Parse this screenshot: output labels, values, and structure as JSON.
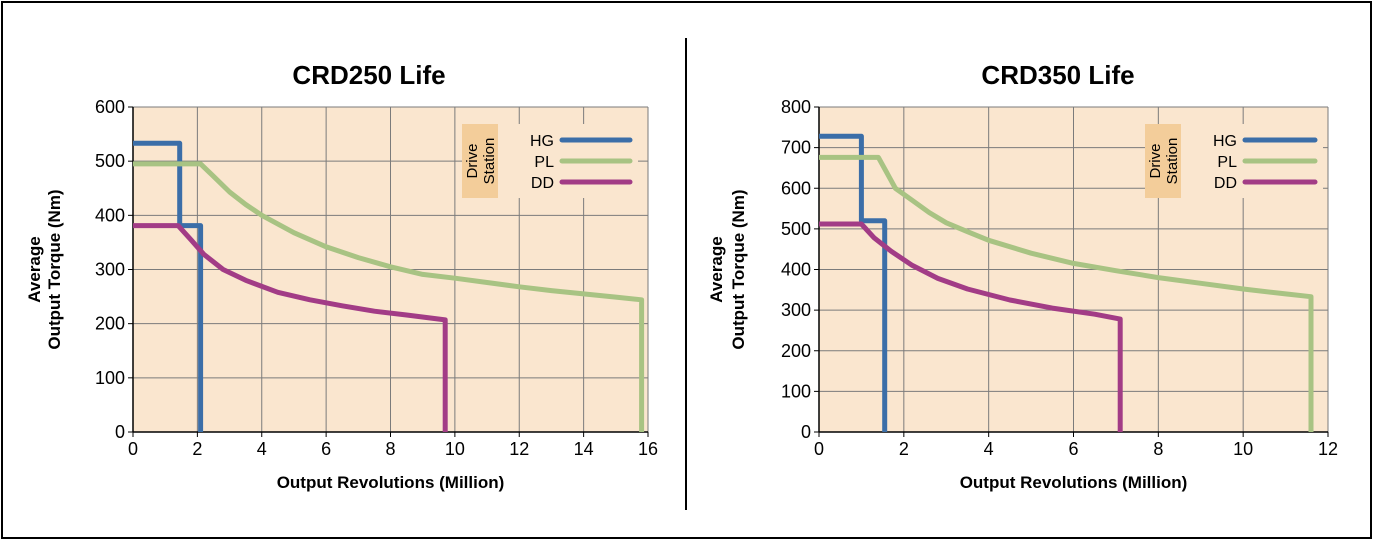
{
  "colors": {
    "plot_bg": "#fae6cf",
    "legend_label_bg": "#f3cd9a",
    "grid": "#7b7b7b",
    "HG": "#3b6ea8",
    "PL": "#a8c383",
    "DD": "#a23c86"
  },
  "chart_data": [
    {
      "type": "line",
      "title": "CRD250 Life",
      "xlabel": "Output Revolutions (Million)",
      "ylabel": [
        "Average",
        "Output Torque (Nm)"
      ],
      "xlim": [
        0,
        16
      ],
      "ylim": [
        0,
        600
      ],
      "xticks": [
        0,
        2,
        4,
        6,
        8,
        10,
        12,
        14,
        16
      ],
      "yticks": [
        0,
        100,
        200,
        300,
        400,
        500,
        600
      ],
      "xgrid": [
        0,
        2,
        4,
        6,
        8,
        10,
        12,
        14,
        16
      ],
      "ygrid": [
        0,
        100,
        200,
        300,
        400,
        500,
        600
      ],
      "grid": true,
      "legend": {
        "title": [
          "Drive",
          "Station"
        ],
        "placement": "top-right"
      },
      "series": [
        {
          "name": "HG",
          "x": [
            0,
            1.45,
            1.45,
            2.1,
            2.1
          ],
          "y": [
            533,
            533,
            381,
            381,
            0
          ]
        },
        {
          "name": "PL",
          "x": [
            0,
            2.1,
            2.5,
            3,
            3.5,
            4,
            5,
            6,
            7,
            8,
            9,
            10,
            11,
            12,
            13,
            14,
            15,
            15.8,
            15.8
          ],
          "y": [
            495,
            495,
            472,
            443,
            420,
            400,
            368,
            342,
            322,
            305,
            291,
            284,
            276,
            268,
            261,
            255,
            249,
            244,
            0
          ]
        },
        {
          "name": "DD",
          "x": [
            0,
            1.4,
            1.8,
            2.2,
            2.8,
            3.5,
            4.5,
            5.5,
            6.5,
            7.5,
            8.5,
            9.7,
            9.7
          ],
          "y": [
            381,
            381,
            355,
            328,
            300,
            280,
            258,
            244,
            233,
            223,
            216,
            207,
            0
          ]
        }
      ]
    },
    {
      "type": "line",
      "title": "CRD350 Life",
      "xlabel": "Output Revolutions (Million)",
      "ylabel": [
        "Average",
        "Output Torque (Nm)"
      ],
      "xlim": [
        0,
        12
      ],
      "ylim": [
        0,
        800
      ],
      "xticks": [
        0,
        2,
        4,
        6,
        8,
        10,
        12
      ],
      "yticks": [
        0,
        100,
        200,
        300,
        400,
        500,
        600,
        700,
        800
      ],
      "xgrid": [
        0,
        2,
        4,
        6,
        8,
        10,
        12
      ],
      "ygrid": [
        0,
        100,
        200,
        300,
        400,
        500,
        600,
        700,
        800
      ],
      "grid": true,
      "legend": {
        "title": [
          "Drive",
          "Station"
        ],
        "placement": "top-right"
      },
      "series": [
        {
          "name": "HG",
          "x": [
            0,
            1.0,
            1.0,
            1.55,
            1.55
          ],
          "y": [
            728,
            728,
            520,
            520,
            0
          ]
        },
        {
          "name": "PL",
          "x": [
            0,
            1.4,
            1.8,
            2.2,
            2.6,
            3,
            3.5,
            4,
            5,
            6,
            7,
            8,
            9,
            10,
            11,
            11.6,
            11.6
          ],
          "y": [
            676,
            676,
            600,
            570,
            540,
            515,
            493,
            472,
            440,
            415,
            397,
            380,
            366,
            352,
            340,
            333,
            0
          ]
        },
        {
          "name": "DD",
          "x": [
            0,
            1.0,
            1.3,
            1.7,
            2.2,
            2.8,
            3.5,
            4.5,
            5.5,
            6.5,
            7.1,
            7.1
          ],
          "y": [
            512,
            512,
            478,
            445,
            410,
            378,
            352,
            325,
            305,
            290,
            278,
            0
          ]
        }
      ]
    }
  ]
}
